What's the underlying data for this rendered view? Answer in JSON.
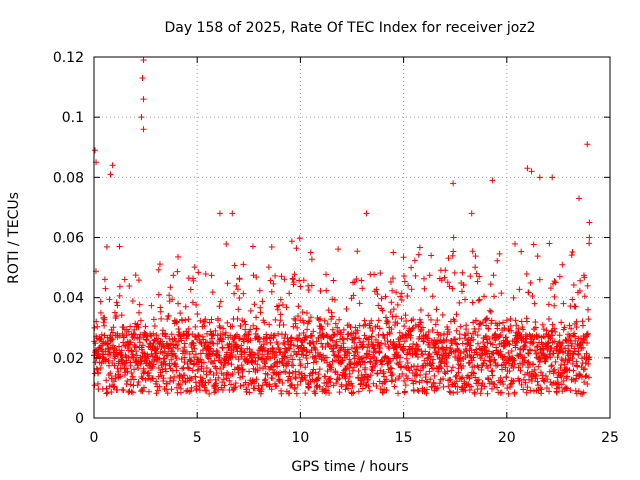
{
  "chart_data": {
    "type": "scatter",
    "title": "Day 158 of 2025, Rate Of TEC Index for receiver joz2",
    "xlabel": "GPS time / hours",
    "ylabel": "ROTI / TECUs",
    "xlim": [
      0,
      25
    ],
    "ylim": [
      0,
      0.12
    ],
    "xticks": [
      0,
      5,
      10,
      15,
      20,
      25
    ],
    "xtick_labels": [
      "0",
      "5",
      "10",
      "15",
      "20",
      "25"
    ],
    "yticks": [
      0,
      0.02,
      0.04,
      0.06,
      0.08,
      0.1,
      0.12
    ],
    "ytick_labels": [
      "0",
      "0.02",
      "0.04",
      "0.06",
      "0.08",
      "0.1",
      "0.12"
    ],
    "grid": true,
    "marker": "+",
    "color": "#ff0000",
    "series": [
      {
        "name": "ROTI",
        "x_range": [
          0,
          24
        ],
        "baseline_band": [
          0.005,
          0.025
        ],
        "notable_points": [
          {
            "x": 2.4,
            "y": 0.119
          },
          {
            "x": 2.35,
            "y": 0.113
          },
          {
            "x": 2.4,
            "y": 0.106
          },
          {
            "x": 2.3,
            "y": 0.1
          },
          {
            "x": 2.4,
            "y": 0.096
          },
          {
            "x": 0.05,
            "y": 0.089
          },
          {
            "x": 0.1,
            "y": 0.085
          },
          {
            "x": 0.9,
            "y": 0.084
          },
          {
            "x": 0.8,
            "y": 0.081
          },
          {
            "x": 21.0,
            "y": 0.083
          },
          {
            "x": 21.2,
            "y": 0.082
          },
          {
            "x": 21.6,
            "y": 0.08
          },
          {
            "x": 22.2,
            "y": 0.08
          },
          {
            "x": 19.3,
            "y": 0.079
          },
          {
            "x": 17.4,
            "y": 0.078
          },
          {
            "x": 23.9,
            "y": 0.091
          },
          {
            "x": 23.5,
            "y": 0.073
          },
          {
            "x": 6.1,
            "y": 0.068
          },
          {
            "x": 6.7,
            "y": 0.068
          },
          {
            "x": 13.2,
            "y": 0.068
          },
          {
            "x": 18.3,
            "y": 0.068
          },
          {
            "x": 24.0,
            "y": 0.065
          },
          {
            "x": 24.0,
            "y": 0.06
          },
          {
            "x": 7.7,
            "y": 0.057
          },
          {
            "x": 10.5,
            "y": 0.055
          },
          {
            "x": 14.5,
            "y": 0.055
          }
        ]
      }
    ]
  }
}
